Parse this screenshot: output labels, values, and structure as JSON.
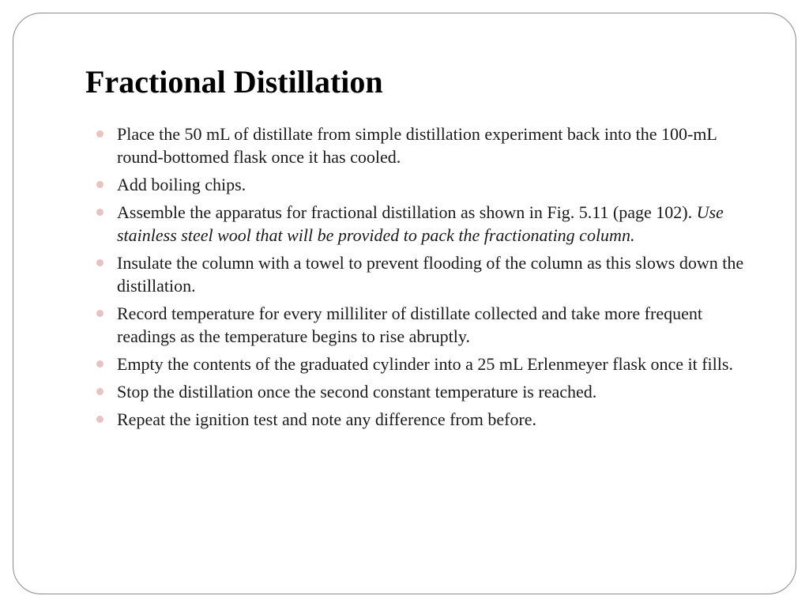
{
  "slide": {
    "title": "Fractional Distillation",
    "title_fontsize": 40,
    "title_color": "#000000",
    "body_fontsize": 22,
    "body_color": "#1a1a1a",
    "bullet_color": "#e6c4c4",
    "border_color": "#888888",
    "border_radius": 36,
    "background_color": "#ffffff",
    "font_family": "Georgia, Times New Roman, serif",
    "bullets": [
      {
        "text": "Place the 50 mL of distillate from simple distillation experiment back into the 100-mL round-bottomed flask once it has cooled."
      },
      {
        "text": "Add boiling chips."
      },
      {
        "text_prefix": "Assemble the apparatus for fractional distillation as shown in Fig. 5.11 (page 102). ",
        "text_italic": "Use stainless steel wool that will be provided to pack the fractionating column."
      },
      {
        "text": "Insulate the column with a towel to prevent flooding of the column as this slows down the distillation."
      },
      {
        "text": "Record temperature for every milliliter of distillate collected and take more frequent readings as the temperature begins to rise abruptly."
      },
      {
        "text": "Empty the contents of the graduated cylinder into a 25 mL Erlenmeyer flask once it fills."
      },
      {
        "text": "Stop the distillation once the second constant temperature is reached."
      },
      {
        "text": "Repeat the ignition test and note any difference from before."
      }
    ]
  }
}
